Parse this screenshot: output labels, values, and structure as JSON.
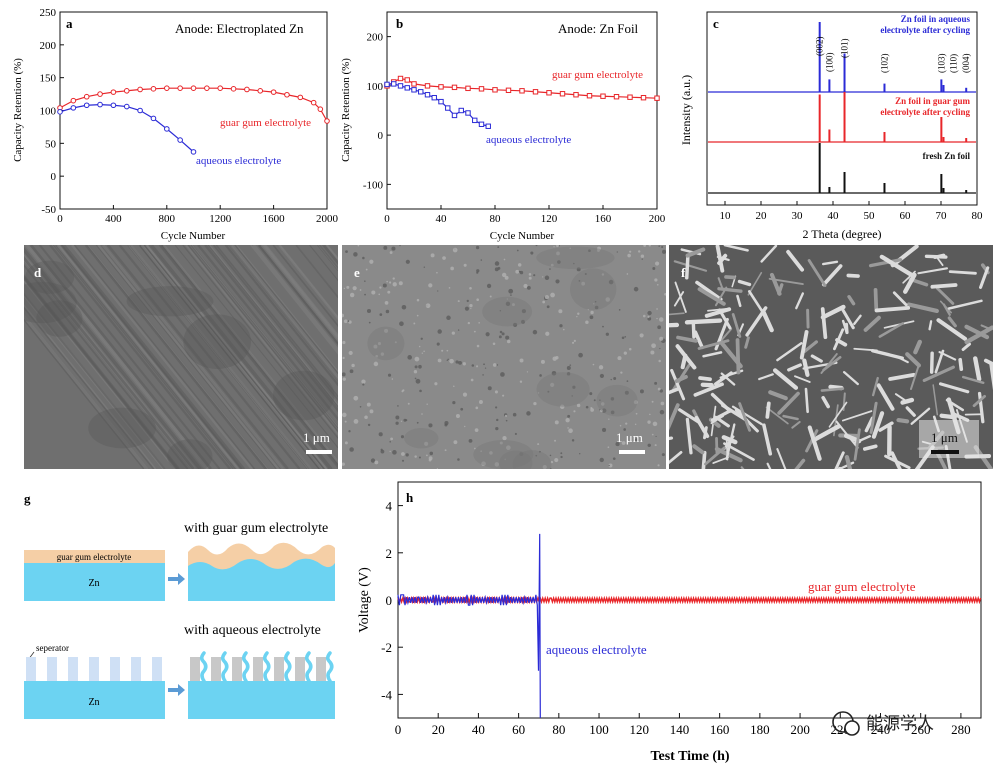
{
  "panels": {
    "a": {
      "letter": "a",
      "title": "Anode: Electroplated Zn",
      "xlabel": "Cycle Number",
      "ylabel": "Capacity Retention (%)",
      "xticks": [
        "0",
        "400",
        "800",
        "1200",
        "1600",
        "2000"
      ],
      "yticks": [
        "-50",
        "0",
        "50",
        "100",
        "150",
        "200",
        "250"
      ],
      "label_gg": "guar gum electrolyte",
      "label_aq": "aqueous electrolyte"
    },
    "b": {
      "letter": "b",
      "title": "Anode: Zn Foil",
      "xlabel": "Cycle Number",
      "ylabel": "Capacity Retention (%)",
      "xticks": [
        "0",
        "40",
        "80",
        "120",
        "160",
        "200"
      ],
      "yticks": [
        "-100",
        "0",
        "100",
        "200"
      ],
      "label_gg": "guar gum electrolyte",
      "label_aq": "aqueous electrolyte"
    },
    "c": {
      "letter": "c",
      "xlabel": "2 Theta (degree)",
      "ylabel": "Intensity (a.u.)",
      "xticks": [
        "10",
        "20",
        "30",
        "40",
        "50",
        "60",
        "70",
        "80"
      ],
      "trace_blue_label_1": "Zn foil in aqueous",
      "trace_blue_label_2": "electrolyte after cycling",
      "trace_red_label_1": "Zn foil in guar gum",
      "trace_red_label_2": "electrolyte after cycling",
      "trace_black_label": "fresh Zn foil",
      "peaks": [
        "(002)",
        "(100)",
        "(101)",
        "(102)",
        "(103)",
        "(110)",
        "(004)"
      ]
    },
    "d": {
      "letter": "d",
      "scale": "1 μm"
    },
    "e": {
      "letter": "e",
      "scale": "1 μm"
    },
    "f": {
      "letter": "f",
      "scale": "1 μm"
    },
    "g": {
      "letter": "g",
      "gg_layer": "guar gum electrolyte",
      "zn": "Zn",
      "with_gg": "with guar gum electrolyte",
      "separator": "seperator",
      "with_aq": "with aqueous electrolyte"
    },
    "h": {
      "letter": "h",
      "xlabel": "Test Time (h)",
      "ylabel": "Voltage (V)",
      "xticks": [
        "0",
        "20",
        "40",
        "60",
        "80",
        "100",
        "120",
        "140",
        "160",
        "180",
        "200",
        "220",
        "240",
        "260",
        "280"
      ],
      "yticks": [
        "-4",
        "-2",
        "0",
        "2",
        "4"
      ],
      "label_gg": "guar gum electrolyte",
      "label_aq": "aqueous electrolyte"
    }
  },
  "watermark": "能源学人",
  "colors": {
    "red": "#e8262a",
    "blue": "#2b2bd6",
    "black": "#111111",
    "zn_blue": "#6cd3f2",
    "gg_peach": "#f5cfa6",
    "arrow": "#5b9bd5"
  },
  "chart_data": [
    {
      "panel": "a",
      "type": "scatter",
      "title": "Anode: Electroplated Zn",
      "xlabel": "Cycle Number",
      "ylabel": "Capacity Retention (%)",
      "xlim": [
        0,
        2000
      ],
      "ylim": [
        -50,
        250
      ],
      "series": [
        {
          "name": "guar gum electrolyte",
          "color": "#e8262a",
          "x": [
            0,
            100,
            200,
            300,
            400,
            500,
            600,
            700,
            800,
            900,
            1000,
            1100,
            1200,
            1300,
            1400,
            1500,
            1600,
            1700,
            1800,
            1900,
            1950,
            2000
          ],
          "y": [
            104,
            115,
            121,
            125,
            128,
            130,
            132,
            133,
            134,
            134,
            134,
            134,
            134,
            133,
            132,
            130,
            128,
            124,
            120,
            112,
            102,
            84
          ]
        },
        {
          "name": "aqueous electrolyte",
          "color": "#2b2bd6",
          "x": [
            0,
            100,
            200,
            300,
            400,
            500,
            600,
            700,
            800,
            900,
            1000
          ],
          "y": [
            98,
            104,
            108,
            109,
            108,
            106,
            100,
            88,
            72,
            55,
            37
          ]
        }
      ]
    },
    {
      "panel": "b",
      "type": "scatter",
      "title": "Anode: Zn Foil",
      "xlabel": "Cycle Number",
      "ylabel": "Capacity Retention (%)",
      "xlim": [
        0,
        200
      ],
      "ylim": [
        -150,
        250
      ],
      "series": [
        {
          "name": "guar gum electrolyte",
          "color": "#e8262a",
          "x": [
            0,
            5,
            10,
            15,
            20,
            30,
            40,
            50,
            60,
            70,
            80,
            90,
            100,
            110,
            120,
            130,
            140,
            150,
            160,
            170,
            180,
            190,
            200
          ],
          "y": [
            100,
            108,
            115,
            112,
            104,
            100,
            98,
            97,
            95,
            94,
            92,
            91,
            90,
            88,
            86,
            84,
            82,
            80,
            79,
            78,
            77,
            76,
            75
          ]
        },
        {
          "name": "aqueous electrolyte",
          "color": "#2b2bd6",
          "x": [
            0,
            5,
            10,
            15,
            20,
            25,
            30,
            35,
            40,
            45,
            50,
            55,
            60,
            65,
            70,
            75
          ],
          "y": [
            103,
            104,
            100,
            96,
            92,
            88,
            82,
            76,
            68,
            55,
            40,
            50,
            45,
            30,
            22,
            18
          ]
        }
      ]
    },
    {
      "panel": "c",
      "type": "line",
      "xlabel": "2 Theta (degree)",
      "ylabel": "Intensity (a.u.)",
      "xlim": [
        5,
        80
      ],
      "series": [
        {
          "name": "Zn foil in aqueous electrolyte after cycling",
          "color": "#2b2bd6",
          "peaks_2theta": [
            36.3,
            39.0,
            43.2,
            54.3,
            70.1,
            70.7,
            77.0
          ],
          "peaks_rel": [
            1.0,
            0.18,
            0.55,
            0.12,
            0.18,
            0.1,
            0.06
          ]
        },
        {
          "name": "Zn foil in guar gum electrolyte after cycling",
          "color": "#e8262a",
          "peaks_2theta": [
            36.3,
            39.0,
            43.2,
            54.3,
            70.1,
            70.7,
            77.0
          ],
          "peaks_rel": [
            0.95,
            0.25,
            1.0,
            0.2,
            0.5,
            0.1,
            0.08
          ]
        },
        {
          "name": "fresh Zn foil",
          "color": "#111111",
          "peaks_2theta": [
            36.3,
            39.0,
            43.2,
            54.3,
            70.1,
            70.7,
            77.0
          ],
          "peaks_rel": [
            1.0,
            0.12,
            0.42,
            0.2,
            0.38,
            0.1,
            0.06
          ]
        }
      ],
      "peak_labels": [
        "(002)",
        "(100)",
        "(101)",
        "(102)",
        "(103)",
        "(110)",
        "(004)"
      ],
      "peak_label_2theta": [
        36.3,
        39.0,
        43.2,
        54.3,
        70.1,
        73.5,
        77.0
      ]
    },
    {
      "panel": "h",
      "type": "line",
      "xlabel": "Test Time (h)",
      "ylabel": "Voltage (V)",
      "xlim": [
        0,
        290
      ],
      "ylim": [
        -5,
        5
      ],
      "series": [
        {
          "name": "guar gum electrolyte",
          "color": "#e8262a",
          "x_range": [
            0,
            290
          ],
          "amplitude": 0.08
        },
        {
          "name": "aqueous electrolyte",
          "color": "#2b2bd6",
          "x_range": [
            0,
            71
          ],
          "amplitude": 0.12,
          "spike_x": 70.5,
          "spike_max": 2.8,
          "spike_min": -5.0
        }
      ]
    }
  ]
}
